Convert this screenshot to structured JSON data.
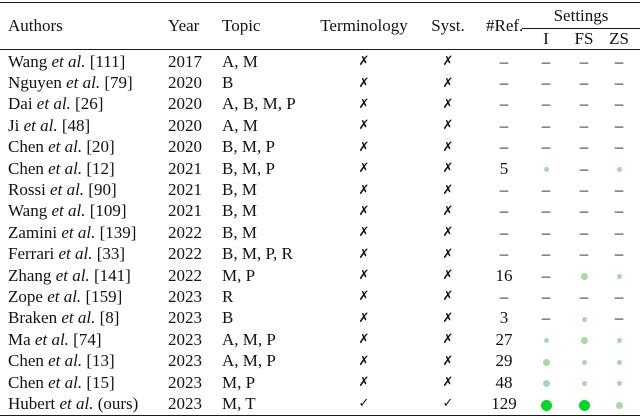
{
  "colors": {
    "dot_pale": "#a8d8a8",
    "dot_bright": "#00d826",
    "text": "#121212",
    "rule": "#1a1a1a"
  },
  "glyphs": {
    "cross": "✗",
    "check": "✓",
    "dash": "–"
  },
  "table": {
    "headers": {
      "authors": "Authors",
      "year": "Year",
      "topic": "Topic",
      "terminology": "Terminology",
      "syst": "Syst.",
      "nref": "#Ref.",
      "settings": "Settings",
      "sub_i": "I",
      "sub_fs": "FS",
      "sub_zs": "ZS"
    },
    "et_al": "et al.",
    "rows": [
      {
        "author": "Wang",
        "ref": "[111]",
        "year": "2017",
        "topic": "A, M",
        "terminology": "cross",
        "syst": "cross",
        "nref": "–",
        "i": "dash",
        "fs": "dash",
        "zs": "dash"
      },
      {
        "author": "Nguyen",
        "ref": "[79]",
        "year": "2020",
        "topic": "B",
        "terminology": "cross",
        "syst": "cross",
        "nref": "–",
        "i": "dash",
        "fs": "dash",
        "zs": "dash"
      },
      {
        "author": "Dai",
        "ref": "[26]",
        "year": "2020",
        "topic": "A, B, M, P",
        "terminology": "cross",
        "syst": "cross",
        "nref": "–",
        "i": "dash",
        "fs": "dash",
        "zs": "dash"
      },
      {
        "author": "Ji",
        "ref": "[48]",
        "year": "2020",
        "topic": "A, M",
        "terminology": "cross",
        "syst": "cross",
        "nref": "–",
        "i": "dash",
        "fs": "dash",
        "zs": "dash"
      },
      {
        "author": "Chen",
        "ref": "[20]",
        "year": "2020",
        "topic": "B, M, P",
        "terminology": "cross",
        "syst": "cross",
        "nref": "–",
        "i": "dash",
        "fs": "dash",
        "zs": "dash"
      },
      {
        "author": "Chen",
        "ref": "[12]",
        "year": "2021",
        "topic": "B, M, P",
        "terminology": "cross",
        "syst": "cross",
        "nref": "5",
        "i": "s",
        "fs": "dash",
        "zs": "s"
      },
      {
        "author": "Rossi",
        "ref": "[90]",
        "year": "2021",
        "topic": "B, M",
        "terminology": "cross",
        "syst": "cross",
        "nref": "–",
        "i": "dash",
        "fs": "dash",
        "zs": "dash"
      },
      {
        "author": "Wang",
        "ref": "[109]",
        "year": "2021",
        "topic": "B, M",
        "terminology": "cross",
        "syst": "cross",
        "nref": "–",
        "i": "dash",
        "fs": "dash",
        "zs": "dash"
      },
      {
        "author": "Zamini",
        "ref": "[139]",
        "year": "2022",
        "topic": "B, M",
        "terminology": "cross",
        "syst": "cross",
        "nref": "–",
        "i": "dash",
        "fs": "dash",
        "zs": "dash"
      },
      {
        "author": "Ferrari",
        "ref": "[33]",
        "year": "2022",
        "topic": "B, M, P, R",
        "terminology": "cross",
        "syst": "cross",
        "nref": "–",
        "i": "dash",
        "fs": "dash",
        "zs": "dash"
      },
      {
        "author": "Zhang",
        "ref": "[141]",
        "year": "2022",
        "topic": "M, P",
        "terminology": "cross",
        "syst": "cross",
        "nref": "16",
        "i": "dash",
        "fs": "m",
        "zs": "s"
      },
      {
        "author": "Zope",
        "ref": "[159]",
        "year": "2023",
        "topic": "R",
        "terminology": "cross",
        "syst": "cross",
        "nref": "–",
        "i": "dash",
        "fs": "dash",
        "zs": "dash"
      },
      {
        "author": "Braken",
        "ref": "[8]",
        "year": "2023",
        "topic": "B",
        "terminology": "cross",
        "syst": "cross",
        "nref": "3",
        "i": "dash",
        "fs": "s",
        "zs": "dash"
      },
      {
        "author": "Ma",
        "ref": "[74]",
        "year": "2023",
        "topic": "A, M, P",
        "terminology": "cross",
        "syst": "cross",
        "nref": "27",
        "i": "s",
        "fs": "m",
        "zs": "s"
      },
      {
        "author": "Chen",
        "ref": "[13]",
        "year": "2023",
        "topic": "A, M, P",
        "terminology": "cross",
        "syst": "cross",
        "nref": "29",
        "i": "m",
        "fs": "s",
        "zs": "s"
      },
      {
        "author": "Chen",
        "ref": "[15]",
        "year": "2023",
        "topic": "M, P",
        "terminology": "cross",
        "syst": "cross",
        "nref": "48",
        "i": "m",
        "fs": "s",
        "zs": "s"
      },
      {
        "author": "Hubert",
        "ref": "(ours)",
        "year": "2023",
        "topic": "M, T",
        "terminology": "check",
        "syst": "check",
        "nref": "129",
        "i": "l",
        "fs": "l",
        "zs": "m"
      }
    ]
  }
}
